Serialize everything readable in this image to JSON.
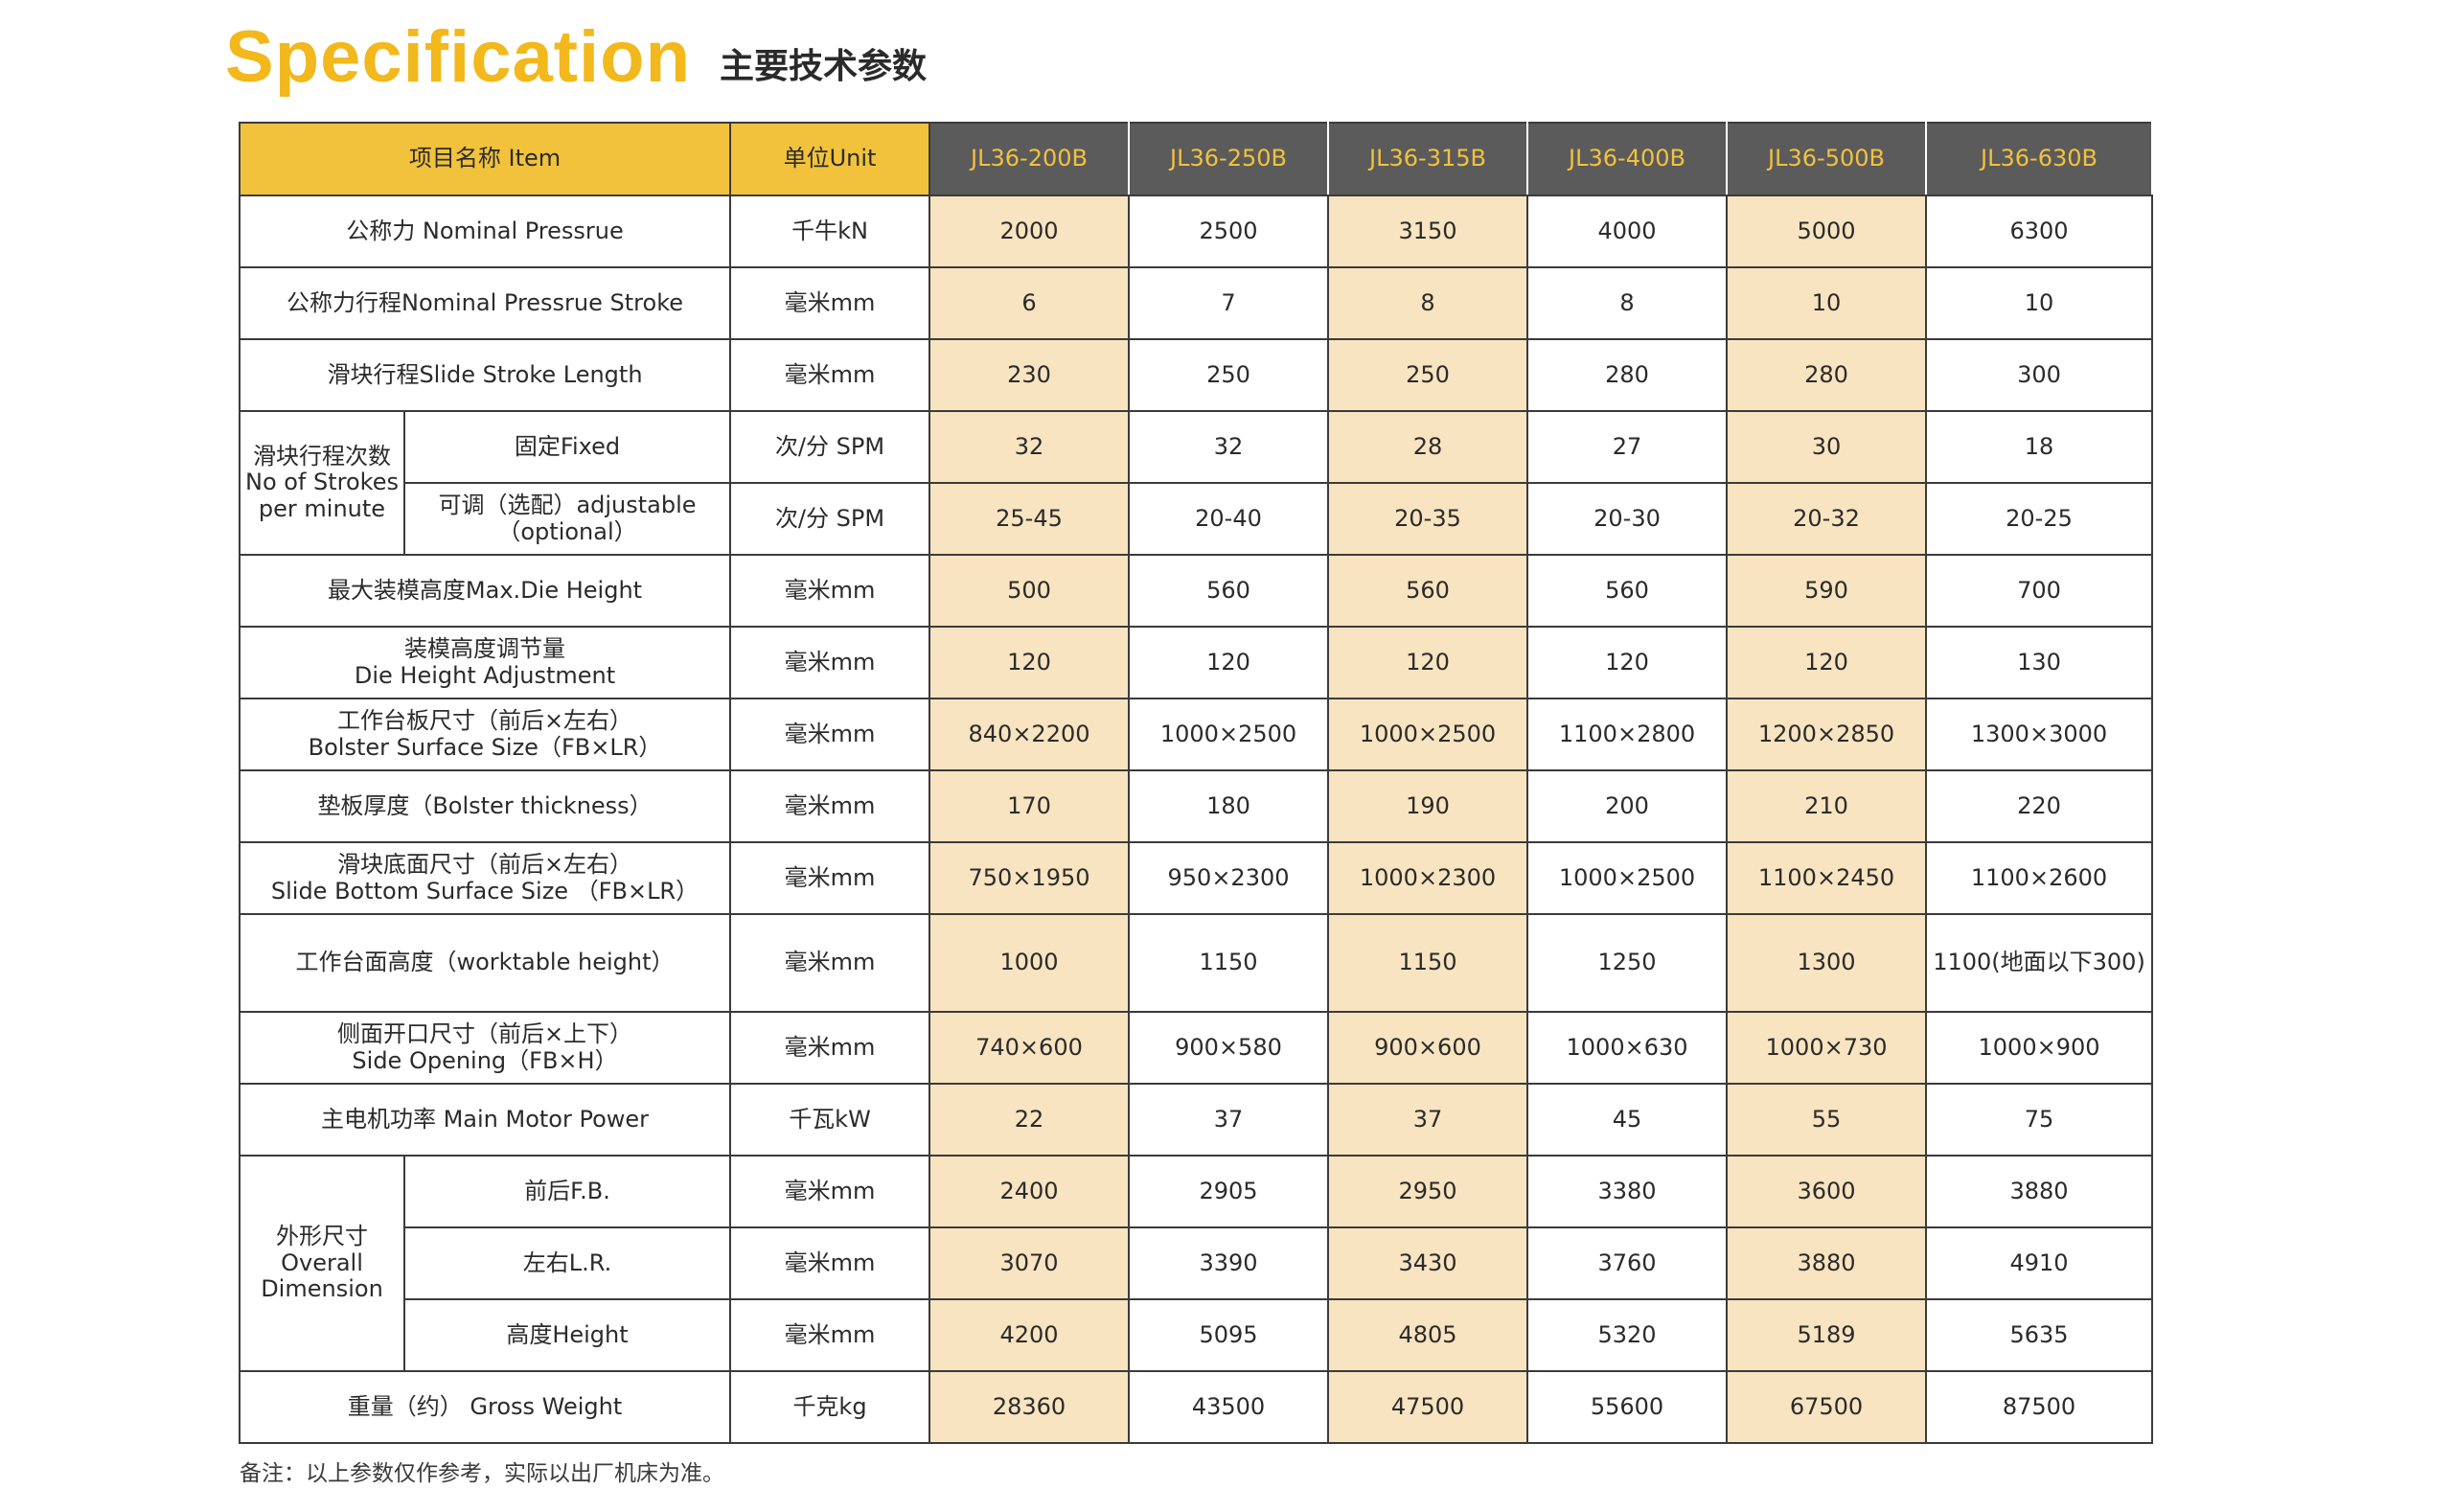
{
  "header": {
    "title_en": "Specification",
    "title_zh": "主要技术参数"
  },
  "table": {
    "col_item": "项目名称 Item",
    "col_unit": "单位Unit",
    "models": [
      "JL36-200B",
      "JL36-250B",
      "JL36-315B",
      "JL36-400B",
      "JL36-500B",
      "JL36-630B"
    ],
    "rows": {
      "nominal_pressure": {
        "label": "公称力 Nominal Pressrue",
        "unit": "千牛kN",
        "values": [
          "2000",
          "2500",
          "3150",
          "4000",
          "5000",
          "6300"
        ]
      },
      "nominal_stroke": {
        "label": "公称力行程Nominal Pressrue Stroke",
        "unit": "毫米mm",
        "values": [
          "6",
          "7",
          "8",
          "8",
          "10",
          "10"
        ]
      },
      "slide_stroke": {
        "label": "滑块行程Slide Stroke Length",
        "unit": "毫米mm",
        "values": [
          "230",
          "250",
          "250",
          "280",
          "280",
          "300"
        ]
      },
      "strokes_group": {
        "label_zh": "滑块行程次数",
        "label_en1": "No of Strokes",
        "label_en2": "per minute"
      },
      "strokes_fixed": {
        "label": "固定Fixed",
        "unit": "次/分 SPM",
        "values": [
          "32",
          "32",
          "28",
          "27",
          "30",
          "18"
        ]
      },
      "strokes_adjustable": {
        "label1": "可调（选配）adjustable",
        "label2": "（optional）",
        "unit": "次/分 SPM",
        "values": [
          "25-45",
          "20-40",
          "20-35",
          "20-30",
          "20-32",
          "20-25"
        ]
      },
      "max_die_height": {
        "label": "最大装模高度Max.Die Height",
        "unit": "毫米mm",
        "values": [
          "500",
          "560",
          "560",
          "560",
          "590",
          "700"
        ]
      },
      "die_adjustment": {
        "label1": "装模高度调节量",
        "label2": "Die Height Adjustment",
        "unit": "毫米mm",
        "values": [
          "120",
          "120",
          "120",
          "120",
          "120",
          "130"
        ]
      },
      "bolster_size": {
        "label1": "工作台板尺寸（前后×左右）",
        "label2": "Bolster Surface Size（FB×LR）",
        "unit": "毫米mm",
        "values": [
          "840×2200",
          "1000×2500",
          "1000×2500",
          "1100×2800",
          "1200×2850",
          "1300×3000"
        ]
      },
      "bolster_thickness": {
        "label": "垫板厚度（Bolster thickness）",
        "unit": "毫米mm",
        "values": [
          "170",
          "180",
          "190",
          "200",
          "210",
          "220"
        ]
      },
      "slide_bottom": {
        "label1": "滑块底面尺寸（前后×左右）",
        "label2": "Slide Bottom Surface Size （FB×LR）",
        "unit": "毫米mm",
        "values": [
          "750×1950",
          "950×2300",
          "1000×2300",
          "1000×2500",
          "1100×2450",
          "1100×2600"
        ]
      },
      "worktable_height": {
        "label": "工作台面高度（worktable height）",
        "unit": "毫米mm",
        "values": [
          "1000",
          "1150",
          "1150",
          "1250",
          "1300",
          "1100(地面以下300)"
        ]
      },
      "side_opening": {
        "label1": "侧面开口尺寸（前后×上下）",
        "label2": "Side Opening（FB×H）",
        "unit": "毫米mm",
        "values": [
          "740×600",
          "900×580",
          "900×600",
          "1000×630",
          "1000×730",
          "1000×900"
        ]
      },
      "motor_power": {
        "label": "主电机功率 Main Motor Power",
        "unit": "千瓦kW",
        "values": [
          "22",
          "37",
          "37",
          "45",
          "55",
          "75"
        ]
      },
      "overall_group": {
        "label_zh": "外形尺寸",
        "label_en1": "Overall",
        "label_en2": "Dimension"
      },
      "overall_fb": {
        "label": "前后F.B.",
        "unit": "毫米mm",
        "values": [
          "2400",
          "2905",
          "2950",
          "3380",
          "3600",
          "3880"
        ]
      },
      "overall_lr": {
        "label": "左右L.R.",
        "unit": "毫米mm",
        "values": [
          "3070",
          "3390",
          "3430",
          "3760",
          "3880",
          "4910"
        ]
      },
      "overall_height": {
        "label": "高度Height",
        "unit": "毫米mm",
        "values": [
          "4200",
          "5095",
          "4805",
          "5320",
          "5189",
          "5635"
        ]
      },
      "gross_weight": {
        "label": "重量（约） Gross Weight",
        "unit": "千克kg",
        "values": [
          "28360",
          "43500",
          "47500",
          "55600",
          "67500",
          "87500"
        ]
      }
    }
  },
  "note": "备注：以上参数仅作参考，实际以出厂机床为准。",
  "colors": {
    "accent_yellow": "#f2b81c",
    "header_yellow": "#f2c23c",
    "header_dark": "#5b5b5b",
    "cream_column": "#f8e4c0"
  }
}
